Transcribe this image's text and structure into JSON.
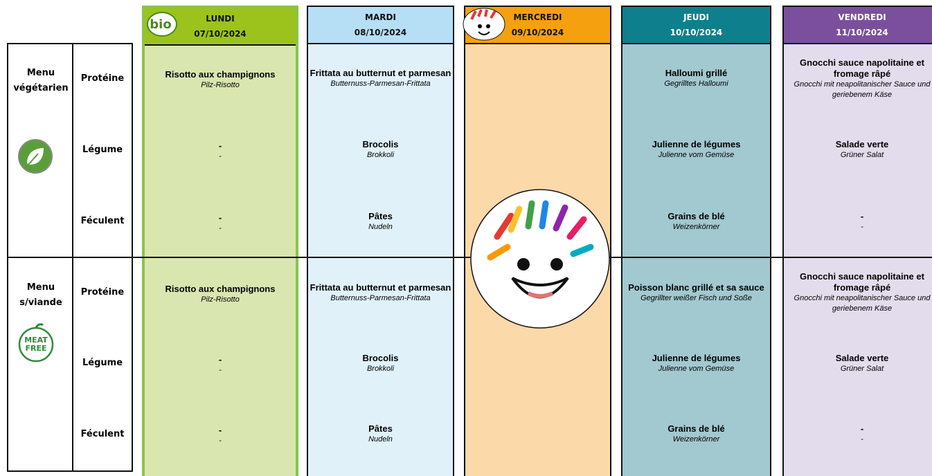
{
  "icons": {
    "bio": "bio",
    "meat_free": [
      "MEAT",
      "FREE"
    ]
  },
  "groups": [
    {
      "label": "Menu végétarien"
    },
    {
      "label": "Menu s/viande"
    }
  ],
  "categories": [
    "Protéine",
    "Légume",
    "Féculent"
  ],
  "days": [
    {
      "name": "LUNDI",
      "date": "07/10/2024",
      "rows": [
        [
          "Risotto aux champignons",
          "Pilz-Risotto"
        ],
        [
          "-",
          "-"
        ],
        [
          "-",
          "-"
        ],
        [
          "Risotto aux champignons",
          "Pilz-Risotto"
        ],
        [
          "-",
          "-"
        ],
        [
          "-",
          "-"
        ]
      ]
    },
    {
      "name": "MARDI",
      "date": "08/10/2024",
      "rows": [
        [
          "Frittata au butternut et parmesan",
          "Butternuss-Parmesan-Frittata"
        ],
        [
          "Brocolis",
          "Brokkoli"
        ],
        [
          "Pâtes",
          "Nudeln"
        ],
        [
          "Frittata au butternut et parmesan",
          "Butternuss-Parmesan-Frittata"
        ],
        [
          "Brocolis",
          "Brokkoli"
        ],
        [
          "Pâtes",
          "Nudeln"
        ]
      ]
    },
    {
      "name": "MERCREDI",
      "date": "09/10/2024",
      "rows": []
    },
    {
      "name": "JEUDI",
      "date": "10/10/2024",
      "rows": [
        [
          "Halloumi grillé",
          "Gegrilltes Halloumi"
        ],
        [
          "Julienne de légumes",
          "Julienne vom Gemüse"
        ],
        [
          "Grains de blé",
          "Weizenkörner"
        ],
        [
          "Poisson blanc grillé et sa sauce",
          "Gegrillter weißer Fisch und Soße"
        ],
        [
          "Julienne de légumes",
          "Julienne vom Gemüse"
        ],
        [
          "Grains de blé",
          "Weizenkörner"
        ]
      ]
    },
    {
      "name": "VENDREDI",
      "date": "11/10/2024",
      "rows": [
        [
          "Gnocchi sauce napolitaine et fromage râpé",
          "Gnocchi mit neapolitanischer Sauce und geriebenem Käse"
        ],
        [
          "Salade verte",
          "Grüner Salat"
        ],
        [
          "-",
          "-"
        ],
        [
          "Gnocchi sauce napolitaine et fromage râpé",
          "Gnocchi mit neapolitanischer Sauce und geriebenem Käse"
        ],
        [
          "Salade verte",
          "Grüner Salat"
        ],
        [
          "-",
          "-"
        ]
      ]
    }
  ]
}
